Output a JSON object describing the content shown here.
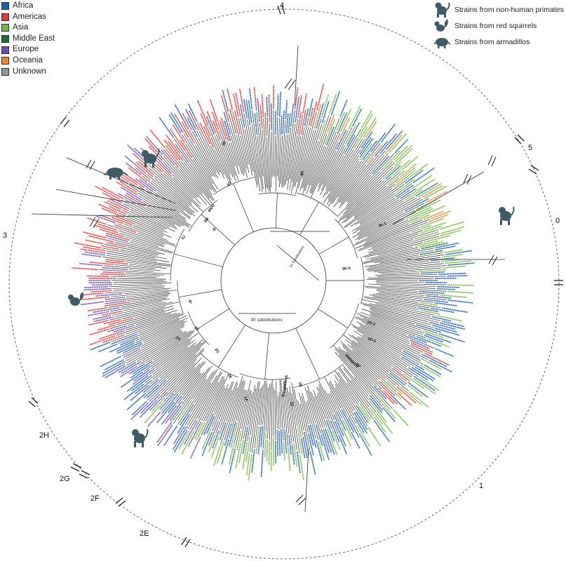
{
  "legend": {
    "items": [
      {
        "label": "Africa",
        "color": "#1f5fb4"
      },
      {
        "label": "Americas",
        "color": "#e23a36"
      },
      {
        "label": "Asia",
        "color": "#74b842"
      },
      {
        "label": "Middle East",
        "color": "#1b6b35"
      },
      {
        "label": "Europe",
        "color": "#6a4fb5"
      },
      {
        "label": "Oceania",
        "color": "#f0822a"
      },
      {
        "label": "Unknown",
        "color": "#8e979c"
      }
    ]
  },
  "host_key": {
    "items": [
      {
        "label": "Strains from non-human primates",
        "icon": "primate-icon"
      },
      {
        "label": "Strains from red squirrels",
        "icon": "squirrel-icon"
      },
      {
        "label": "Strains from armadillos",
        "icon": "armadillo-icon"
      }
    ]
  },
  "branch_labels": {
    "b4": "4",
    "b5": "5",
    "b0": "0",
    "b3": "3",
    "b2H": "2H",
    "b2G": "2G",
    "b2F": "2F",
    "b2E": "2E",
    "b1": "1"
  },
  "scale": {
    "inner": "30 substitutions",
    "long_branch": "14 Substitutions"
  },
  "internal_labels": {
    "l4P": "4P",
    "l4O": "4O",
    "l4N": "4N",
    "l4NO": "4N/O",
    "l3M": "3M",
    "l3I": "3I",
    "l3K1": "3K-1",
    "l3K0": "3K-0",
    "l3L": "3L",
    "l2F": "2F",
    "l2H": "2H",
    "l2G": "2G",
    "l2E": "2E",
    "l1D2": "1D-2",
    "l1D1": "1D-1",
    "l1A": "1A",
    "l1B": "1B",
    "l1C": "1C",
    "lMalagasy": "Malagasy",
    "lBangladesh": "Bangladesh",
    "l1D": "1D",
    "l3J": "3J"
  },
  "host_colors": {
    "icon": "#3e5b66"
  }
}
